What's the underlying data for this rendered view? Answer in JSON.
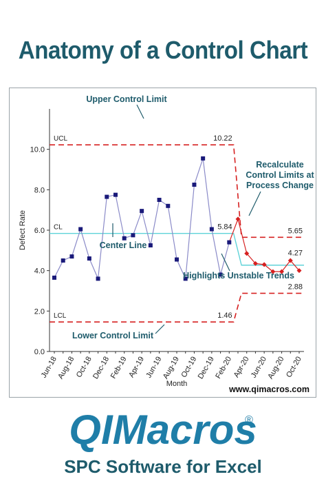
{
  "page": {
    "headline": "Anatomy of a Control Chart",
    "website": "www.qimacros.com",
    "logo_text": "QIMacros",
    "logo_mark": "®",
    "tagline": "SPC Software for Excel",
    "colors": {
      "brand_teal": "#1e5b6b",
      "logo_blue": "#1f7ea8",
      "limit_red": "#d62020",
      "center_cyan": "#5fd3d8",
      "series_navy": "#1a1a7a",
      "series_line": "#8a8ac8",
      "unstable_red": "#d62020"
    }
  },
  "chart_data": {
    "type": "line",
    "title": "",
    "xlabel": "Month",
    "ylabel": "Defect Rate",
    "ylim": [
      0,
      12
    ],
    "yticks": [
      "0.0",
      "2.0",
      "4.0",
      "6.0",
      "8.0",
      "10.0"
    ],
    "x": [
      "Jun-18",
      "Jul-18",
      "Aug-18",
      "Sep-18",
      "Oct-18",
      "Nov-18",
      "Dec-18",
      "Jan-19",
      "Feb-19",
      "Mar-19",
      "Apr-19",
      "May-19",
      "Jun-19",
      "Jul-19",
      "Aug-19",
      "Sep-19",
      "Oct-19",
      "Nov-19",
      "Dec-19",
      "Jan-20",
      "Feb-20",
      "Mar-20",
      "Apr-20",
      "May-20",
      "Jun-20",
      "Jul-20",
      "Aug-20",
      "Sep-20",
      "Oct-20"
    ],
    "xtick_labels": [
      "Jun-18",
      "Aug-18",
      "Oct-18",
      "Dec-18",
      "Feb-19",
      "Apr-19",
      "Jun-19",
      "Aug-19",
      "Oct-19",
      "Dec-19",
      "Feb-20",
      "Apr-20",
      "Jun-20",
      "Aug-20",
      "Oct-20"
    ],
    "values": [
      3.65,
      4.5,
      4.7,
      6.05,
      4.6,
      3.6,
      7.65,
      7.75,
      5.6,
      5.75,
      6.95,
      5.25,
      7.5,
      7.2,
      4.55,
      3.6,
      8.25,
      9.55,
      6.05,
      3.8,
      5.4,
      6.55,
      4.85,
      4.35,
      4.3,
      3.95,
      3.95,
      4.5,
      4.0
    ],
    "unstable_start_index": 21,
    "control_limits": {
      "before": {
        "ucl": 10.22,
        "cl": 5.84,
        "lcl": 1.46
      },
      "after": {
        "ucl": 5.65,
        "cl": 4.27,
        "lcl": 2.88
      }
    },
    "limit_labels": {
      "ucl": "UCL",
      "cl": "CL",
      "lcl": "LCL"
    },
    "value_labels": {
      "ucl_before": "10.22",
      "cl_before": "5.84",
      "lcl_before": "1.46",
      "ucl_after": "5.65",
      "cl_after": "4.27",
      "lcl_after": "2.88"
    },
    "annotations": {
      "ucl": "Upper Control Limit",
      "cl": "Center Line",
      "lcl": "Lower Control Limit",
      "recalc": [
        "Recalculate",
        "Control Limits at",
        "Process Change"
      ],
      "unstable": "Highlights Unstable Trends"
    }
  }
}
